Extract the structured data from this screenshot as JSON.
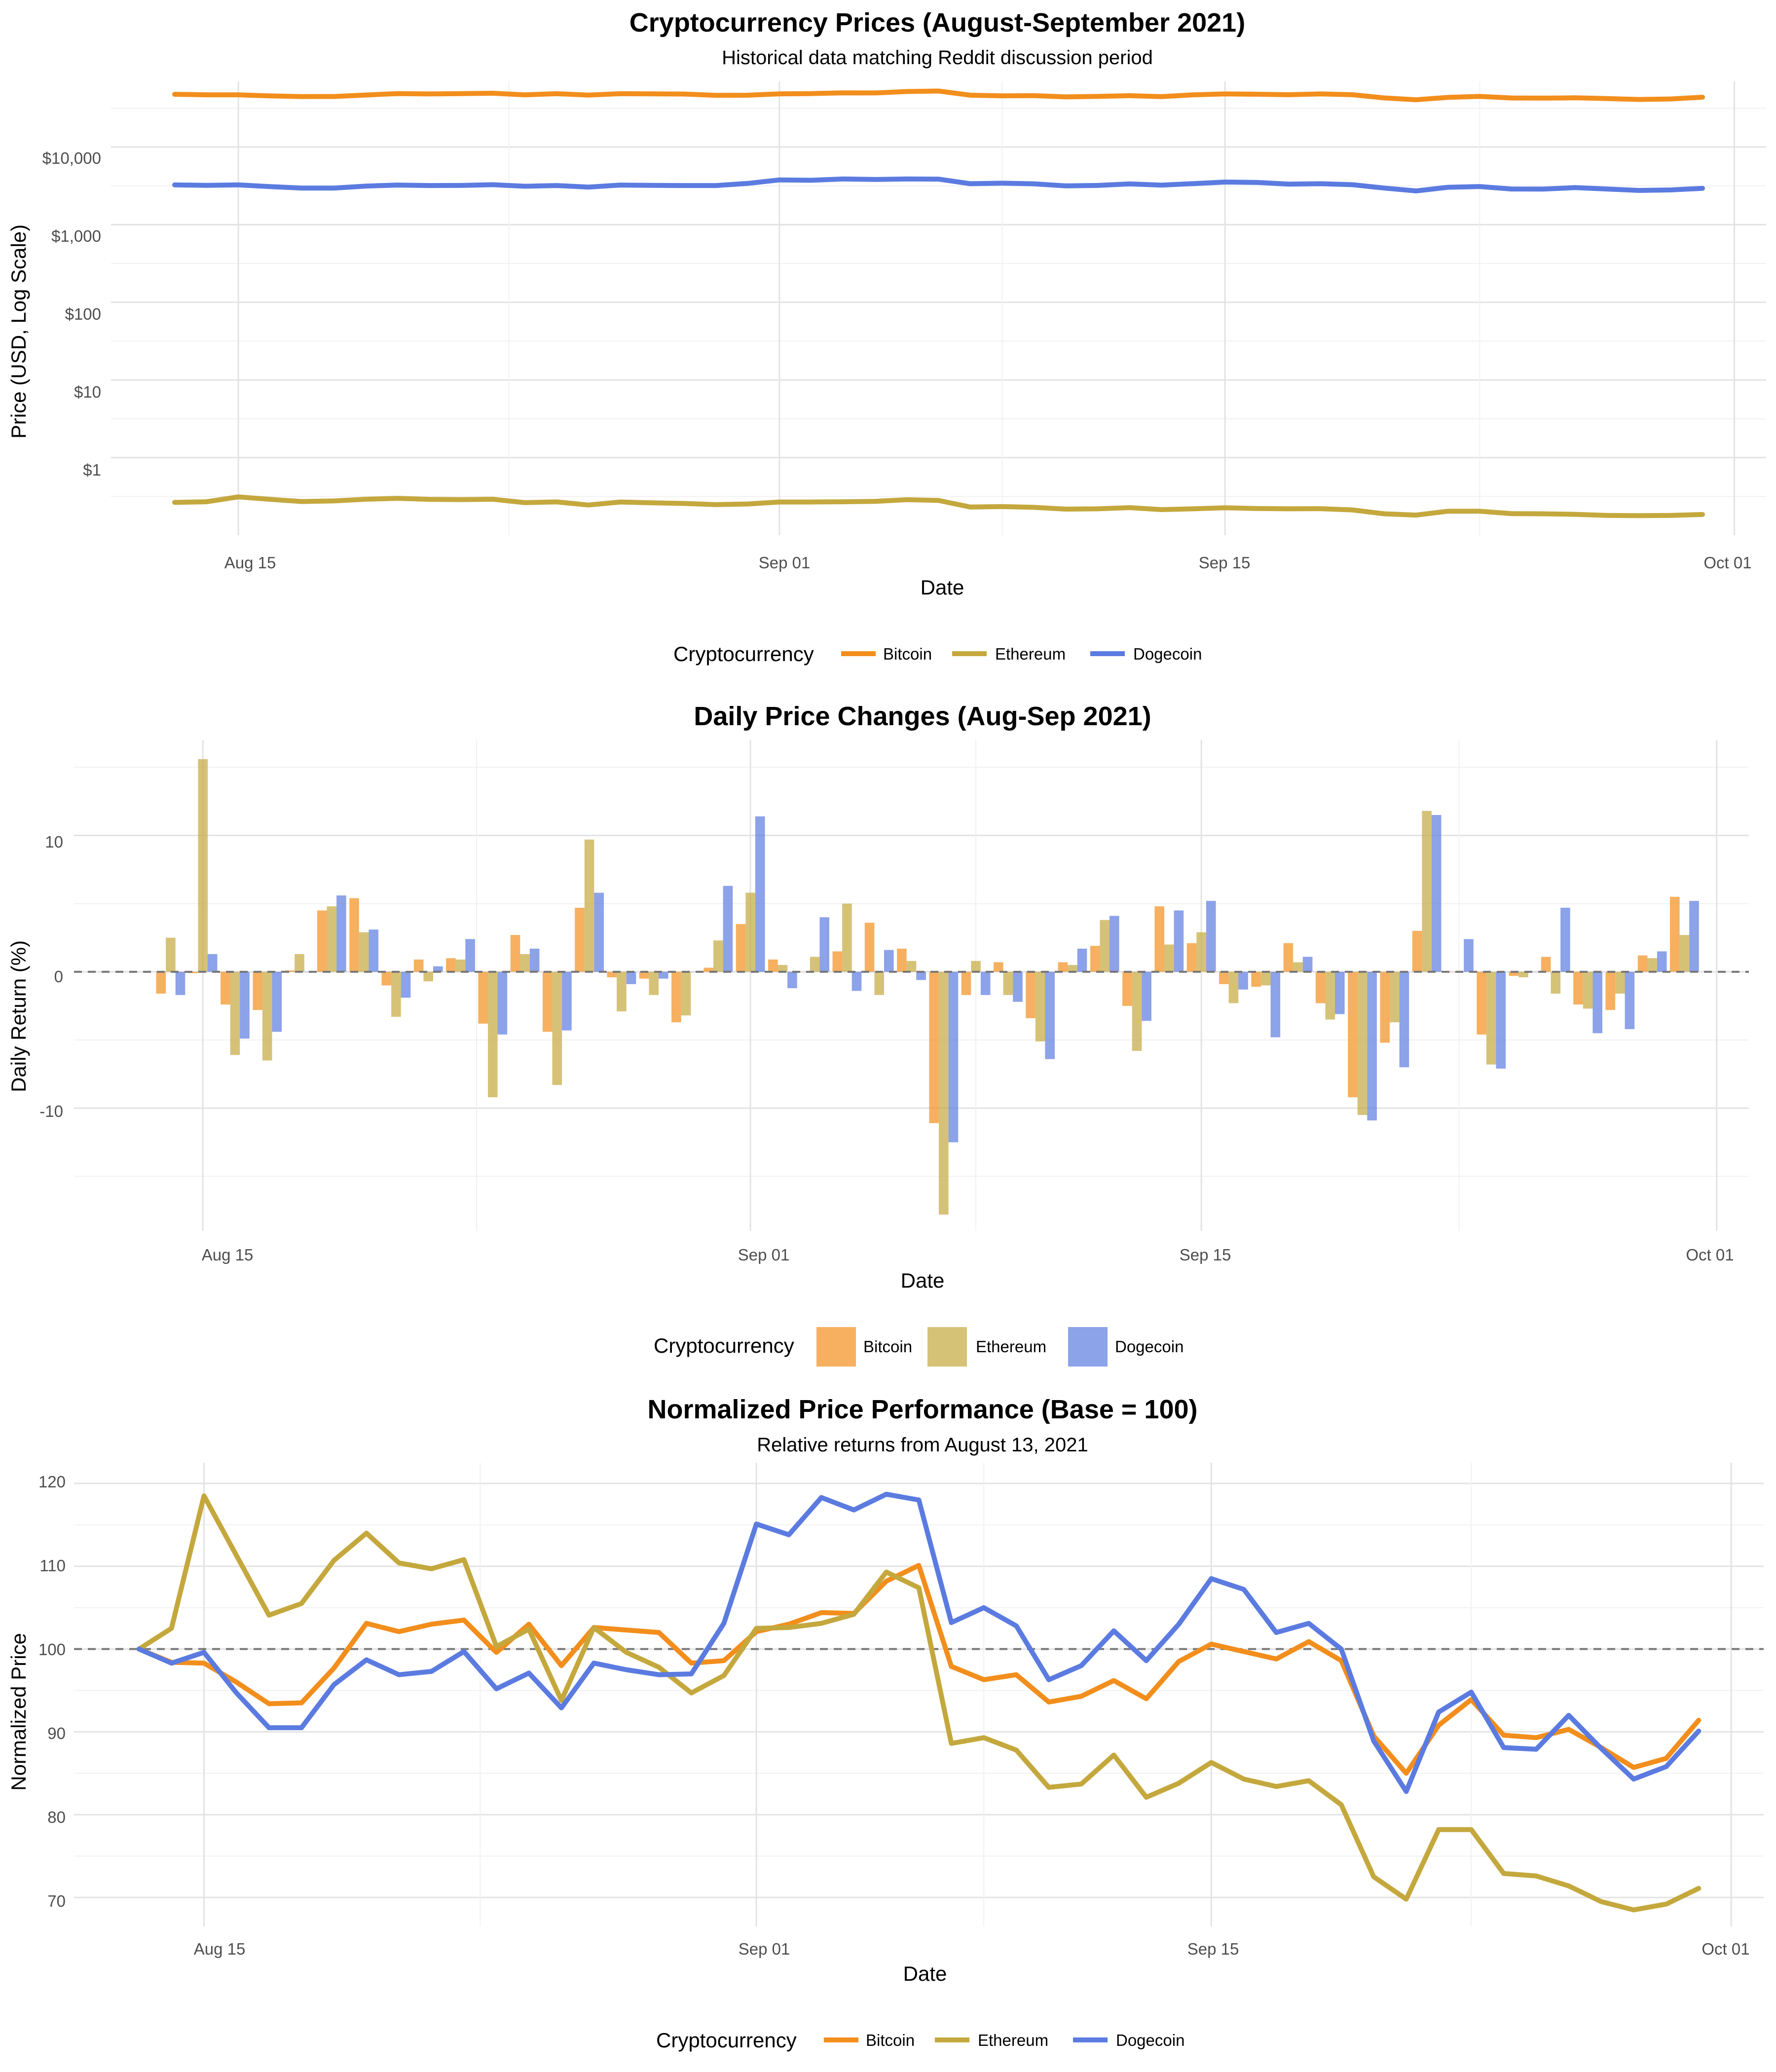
{
  "colors": {
    "Bitcoin": "#f28e1c",
    "Ethereum": "#c4a83d",
    "Dogecoin": "#5b7be0"
  },
  "charts": [
    {
      "title": "Cryptocurrency Prices (August-September 2021)",
      "subtitle": "Historical data matching Reddit discussion period",
      "xlabel": "Date",
      "ylabel": "Price (USD, Log Scale)",
      "x_ticks": [
        "Aug 15",
        "Sep 01",
        "Sep 15",
        "Oct 01"
      ],
      "y_ticks": [
        "$1",
        "$10",
        "$100",
        "$1,000",
        "$10,000"
      ],
      "legend_title": "Cryptocurrency",
      "legend": [
        "Bitcoin",
        "Ethereum",
        "Dogecoin"
      ]
    },
    {
      "title": "Daily Price Changes (Aug-Sep 2021)",
      "subtitle": "",
      "xlabel": "Date",
      "ylabel": "Daily Return (%)",
      "x_ticks": [
        "Aug 15",
        "Sep 01",
        "Sep 15",
        "Oct 01"
      ],
      "y_ticks": [
        "-10",
        "0",
        "10"
      ],
      "legend_title": "Cryptocurrency",
      "legend": [
        "Bitcoin",
        "Ethereum",
        "Dogecoin"
      ]
    },
    {
      "title": "Normalized Price Performance (Base = 100)",
      "subtitle": "Relative returns from August 13, 2021",
      "xlabel": "Date",
      "ylabel": "Normalized Price",
      "x_ticks": [
        "Aug 15",
        "Sep 01",
        "Sep 15",
        "Oct 01"
      ],
      "y_ticks": [
        "70",
        "80",
        "90",
        "100",
        "110",
        "120"
      ],
      "legend_title": "Cryptocurrency",
      "legend": [
        "Bitcoin",
        "Ethereum",
        "Dogecoin"
      ]
    }
  ],
  "chart_data": [
    {
      "type": "line",
      "title": "Cryptocurrency Prices (August-September 2021)",
      "subtitle": "Historical data matching Reddit discussion period",
      "xlabel": "Date",
      "ylabel": "Price (USD, Log Scale)",
      "y_scale": "log",
      "ylim": [
        0.1,
        70000
      ],
      "xlim": [
        "2021-08-11",
        "2021-10-02"
      ],
      "grid": true,
      "legend_position": "bottom",
      "x": [
        "2021-08-13",
        "2021-08-14",
        "2021-08-15",
        "2021-08-16",
        "2021-08-17",
        "2021-08-18",
        "2021-08-19",
        "2021-08-20",
        "2021-08-21",
        "2021-08-22",
        "2021-08-23",
        "2021-08-24",
        "2021-08-25",
        "2021-08-26",
        "2021-08-27",
        "2021-08-28",
        "2021-08-29",
        "2021-08-30",
        "2021-08-31",
        "2021-09-01",
        "2021-09-02",
        "2021-09-03",
        "2021-09-04",
        "2021-09-05",
        "2021-09-06",
        "2021-09-07",
        "2021-09-08",
        "2021-09-09",
        "2021-09-10",
        "2021-09-11",
        "2021-09-12",
        "2021-09-13",
        "2021-09-14",
        "2021-09-15",
        "2021-09-16",
        "2021-09-17",
        "2021-09-18",
        "2021-09-19",
        "2021-09-20",
        "2021-09-21",
        "2021-09-22",
        "2021-09-23",
        "2021-09-24",
        "2021-09-25",
        "2021-09-26",
        "2021-09-27",
        "2021-09-28",
        "2021-09-29",
        "2021-09-30"
      ],
      "series": [
        {
          "name": "Bitcoin",
          "values": [
            47800,
            47050,
            46950,
            45550,
            44700,
            44750,
            46750,
            48800,
            48300,
            48750,
            49250,
            46950,
            48650,
            46650,
            48650,
            48400,
            48150,
            46350,
            46500,
            48400,
            48800,
            49850,
            49700,
            51850,
            52600,
            46450,
            45650,
            45850,
            44250,
            44850,
            45850,
            44550,
            47050,
            48250,
            47850,
            47150,
            48250,
            47150,
            42850,
            40600,
            43600,
            44900,
            42800,
            42650,
            43000,
            42100,
            41000,
            41600,
            43800
          ]
        },
        {
          "name": "Ethereum",
          "values": [
            0.265,
            0.27,
            0.312,
            0.29,
            0.272,
            0.277,
            0.291,
            0.299,
            0.29,
            0.288,
            0.291,
            0.263,
            0.269,
            0.245,
            0.268,
            0.262,
            0.257,
            0.248,
            0.253,
            0.268,
            0.268,
            0.27,
            0.273,
            0.287,
            0.281,
            0.231,
            0.234,
            0.229,
            0.217,
            0.219,
            0.227,
            0.214,
            0.219,
            0.226,
            0.221,
            0.219,
            0.22,
            0.212,
            0.189,
            0.182,
            0.204,
            0.204,
            0.19,
            0.189,
            0.186,
            0.18,
            0.179,
            0.18,
            0.185
          ]
        },
        {
          "name": "Dogecoin",
          "values": [
            3250,
            3210,
            3250,
            3095,
            2960,
            2960,
            3140,
            3240,
            3190,
            3200,
            3270,
            3125,
            3190,
            3050,
            3240,
            3210,
            3190,
            3190,
            3400,
            3770,
            3730,
            3880,
            3820,
            3880,
            3860,
            3370,
            3430,
            3360,
            3160,
            3200,
            3350,
            3230,
            3380,
            3540,
            3500,
            3330,
            3370,
            3270,
            2960,
            2720,
            3030,
            3100,
            2880,
            2870,
            3000,
            2880,
            2760,
            2800,
            2940
          ]
        }
      ]
    },
    {
      "type": "bar",
      "title": "Daily Price Changes (Aug-Sep 2021)",
      "subtitle": "",
      "xlabel": "Date",
      "ylabel": "Daily Return (%)",
      "ylim": [
        -19,
        17
      ],
      "xlim": [
        "2021-08-11",
        "2021-10-02"
      ],
      "grid": true,
      "legend_position": "bottom",
      "reference_line": 0,
      "x": [
        "2021-08-14",
        "2021-08-15",
        "2021-08-16",
        "2021-08-17",
        "2021-08-18",
        "2021-08-19",
        "2021-08-20",
        "2021-08-21",
        "2021-08-22",
        "2021-08-23",
        "2021-08-24",
        "2021-08-25",
        "2021-08-26",
        "2021-08-27",
        "2021-08-28",
        "2021-08-29",
        "2021-08-30",
        "2021-08-31",
        "2021-09-01",
        "2021-09-02",
        "2021-09-03",
        "2021-09-04",
        "2021-09-05",
        "2021-09-06",
        "2021-09-07",
        "2021-09-08",
        "2021-09-09",
        "2021-09-10",
        "2021-09-11",
        "2021-09-12",
        "2021-09-13",
        "2021-09-14",
        "2021-09-15",
        "2021-09-16",
        "2021-09-17",
        "2021-09-18",
        "2021-09-19",
        "2021-09-20",
        "2021-09-21",
        "2021-09-22",
        "2021-09-23",
        "2021-09-24",
        "2021-09-25",
        "2021-09-26",
        "2021-09-27",
        "2021-09-28",
        "2021-09-29",
        "2021-09-30"
      ],
      "series": [
        {
          "name": "Bitcoin",
          "values": [
            -1.6,
            -0.1,
            -2.4,
            -2.8,
            0.1,
            4.5,
            5.4,
            -1.0,
            0.9,
            1.0,
            -3.8,
            2.7,
            -4.4,
            4.7,
            -0.4,
            -0.5,
            -3.7,
            0.3,
            3.5,
            0.9,
            0.0,
            1.5,
            3.6,
            1.7,
            -11.1,
            -1.7,
            0.7,
            -3.4,
            0.7,
            1.9,
            -2.5,
            4.8,
            2.1,
            -0.9,
            -1.1,
            2.1,
            -2.3,
            -9.2,
            -5.2,
            3.0,
            0.0,
            -4.6,
            -0.3,
            1.1,
            -2.4,
            -2.8,
            1.2,
            5.5
          ]
        },
        {
          "name": "Ethereum",
          "values": [
            2.5,
            15.6,
            -6.1,
            -6.5,
            1.3,
            4.8,
            2.9,
            -3.3,
            -0.7,
            0.9,
            -9.2,
            1.3,
            -8.3,
            9.7,
            -2.9,
            -1.7,
            -3.2,
            2.3,
            5.8,
            0.5,
            1.1,
            5.0,
            -1.7,
            0.8,
            -17.8,
            0.8,
            -1.7,
            -5.1,
            0.5,
            3.8,
            -5.8,
            2.0,
            2.9,
            -2.3,
            -1.0,
            0.7,
            -3.5,
            -10.5,
            -3.7,
            11.8,
            0.0,
            -6.8,
            -0.4,
            -1.6,
            -2.7,
            -1.6,
            1.0,
            2.7
          ]
        },
        {
          "name": "Dogecoin",
          "values": [
            -1.7,
            1.3,
            -4.9,
            -4.4,
            0.0,
            5.6,
            3.1,
            -1.9,
            0.4,
            2.4,
            -4.6,
            1.7,
            -4.3,
            5.8,
            -0.9,
            -0.5,
            0.0,
            6.3,
            11.4,
            -1.2,
            4.0,
            -1.4,
            1.6,
            -0.6,
            -12.5,
            -1.7,
            -2.2,
            -6.4,
            1.7,
            4.1,
            -3.6,
            4.5,
            5.2,
            -1.3,
            -4.8,
            1.1,
            -3.1,
            -10.9,
            -7.0,
            11.5,
            2.4,
            -7.1,
            0.0,
            4.7,
            -4.5,
            -4.2,
            1.5,
            5.2
          ]
        }
      ]
    },
    {
      "type": "line",
      "title": "Normalized Price Performance (Base = 100)",
      "subtitle": "Relative returns from August 13, 2021",
      "xlabel": "Date",
      "ylabel": "Normalized Price",
      "ylim": [
        66.5,
        122.5
      ],
      "xlim": [
        "2021-08-11",
        "2021-10-02"
      ],
      "grid": true,
      "legend_position": "bottom",
      "reference_line": 100,
      "x": [
        "2021-08-13",
        "2021-08-14",
        "2021-08-15",
        "2021-08-16",
        "2021-08-17",
        "2021-08-18",
        "2021-08-19",
        "2021-08-20",
        "2021-08-21",
        "2021-08-22",
        "2021-08-23",
        "2021-08-24",
        "2021-08-25",
        "2021-08-26",
        "2021-08-27",
        "2021-08-28",
        "2021-08-29",
        "2021-08-30",
        "2021-08-31",
        "2021-09-01",
        "2021-09-02",
        "2021-09-03",
        "2021-09-04",
        "2021-09-05",
        "2021-09-06",
        "2021-09-07",
        "2021-09-08",
        "2021-09-09",
        "2021-09-10",
        "2021-09-11",
        "2021-09-12",
        "2021-09-13",
        "2021-09-14",
        "2021-09-15",
        "2021-09-16",
        "2021-09-17",
        "2021-09-18",
        "2021-09-19",
        "2021-09-20",
        "2021-09-21",
        "2021-09-22",
        "2021-09-23",
        "2021-09-24",
        "2021-09-25",
        "2021-09-26",
        "2021-09-27",
        "2021-09-28",
        "2021-09-29",
        "2021-09-30"
      ],
      "series": [
        {
          "name": "Bitcoin",
          "values": [
            100,
            98.4,
            98.3,
            96.0,
            93.4,
            93.5,
            97.7,
            103.1,
            102.1,
            103.0,
            103.5,
            99.6,
            103.0,
            98.0,
            102.6,
            102.3,
            102.0,
            98.3,
            98.6,
            102.1,
            103.0,
            104.4,
            104.3,
            108.2,
            110.1,
            97.9,
            96.3,
            96.9,
            93.6,
            94.3,
            96.2,
            94.0,
            98.5,
            100.6,
            99.7,
            98.8,
            100.9,
            98.6,
            89.5,
            85.0,
            90.8,
            93.9,
            89.6,
            89.3,
            90.3,
            88.1,
            85.7,
            86.8,
            91.4
          ]
        },
        {
          "name": "Ethereum",
          "values": [
            100,
            102.5,
            118.5,
            111.3,
            104.1,
            105.5,
            110.7,
            114.0,
            110.4,
            109.7,
            110.8,
            100.3,
            102.4,
            93.8,
            102.6,
            99.6,
            97.8,
            94.7,
            96.8,
            102.5,
            102.6,
            103.1,
            104.2,
            109.3,
            107.4,
            88.6,
            89.3,
            87.8,
            83.3,
            83.7,
            87.2,
            82.1,
            83.8,
            86.3,
            84.3,
            83.4,
            84.1,
            81.2,
            72.5,
            69.8,
            78.2,
            78.2,
            72.9,
            72.6,
            71.4,
            69.5,
            68.5,
            69.2,
            71.1
          ]
        },
        {
          "name": "Dogecoin",
          "values": [
            100,
            98.3,
            99.6,
            94.7,
            90.5,
            90.5,
            95.7,
            98.7,
            96.9,
            97.3,
            99.7,
            95.2,
            97.1,
            92.9,
            98.3,
            97.5,
            96.9,
            97.0,
            103.1,
            115.1,
            113.8,
            118.3,
            116.8,
            118.7,
            118.0,
            103.2,
            105.0,
            102.8,
            96.3,
            98.0,
            102.2,
            98.6,
            103.0,
            108.5,
            107.2,
            102.0,
            103.1,
            100.0,
            88.9,
            82.8,
            92.4,
            94.8,
            88.1,
            87.9,
            92.0,
            88.0,
            84.3,
            85.8,
            90.1
          ]
        }
      ]
    }
  ]
}
